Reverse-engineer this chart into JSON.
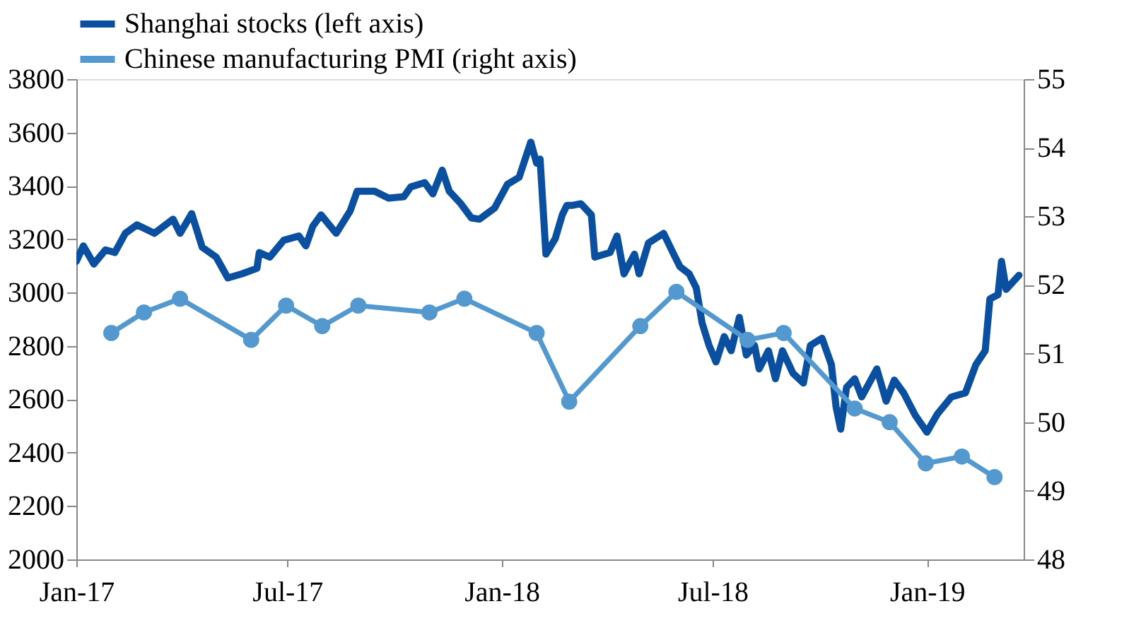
{
  "chart_data": {
    "type": "line",
    "xlim": [
      "2017-01-01",
      "2019-03-25"
    ],
    "xticks": [
      {
        "value": "2017-01-01",
        "label": "Jan-17"
      },
      {
        "value": "2017-07-01",
        "label": "Jul-17"
      },
      {
        "value": "2018-01-01",
        "label": "Jan-18"
      },
      {
        "value": "2018-07-01",
        "label": "Jul-18"
      },
      {
        "value": "2019-01-01",
        "label": "Jan-19"
      }
    ],
    "ylim": [
      2000,
      3800
    ],
    "yticks": [
      2000,
      2200,
      2400,
      2600,
      2800,
      3000,
      3200,
      3400,
      3600,
      3800
    ],
    "y2lim": [
      48,
      55
    ],
    "y2ticks": [
      48,
      49,
      50,
      51,
      52,
      53,
      54,
      55
    ],
    "grid": false,
    "legend": "top",
    "series": [
      {
        "name": "Shanghai stocks (left axis)",
        "color": "#0b4fa0",
        "marker": "none",
        "x": [
          "2017-01-01",
          "2017-01-07",
          "2017-01-16",
          "2017-01-26",
          "2017-02-03",
          "2017-02-12",
          "2017-02-22",
          "2017-03-09",
          "2017-03-25",
          "2017-03-31",
          "2017-04-10",
          "2017-04-19",
          "2017-05-01",
          "2017-05-11",
          "2017-05-23",
          "2017-06-05",
          "2017-06-07",
          "2017-06-16",
          "2017-06-28",
          "2017-07-11",
          "2017-07-17",
          "2017-07-23",
          "2017-07-30",
          "2017-08-12",
          "2017-08-24",
          "2017-08-30",
          "2017-09-14",
          "2017-09-26",
          "2017-10-09",
          "2017-10-15",
          "2017-10-27",
          "2017-11-03",
          "2017-11-11",
          "2017-11-17",
          "2017-11-27",
          "2017-12-06",
          "2017-12-13",
          "2017-12-26",
          "2018-01-06",
          "2018-01-16",
          "2018-01-26",
          "2018-01-31",
          "2018-02-03",
          "2018-02-08",
          "2018-02-16",
          "2018-02-22",
          "2018-02-26",
          "2018-03-03",
          "2018-03-10",
          "2018-03-19",
          "2018-03-22",
          "2018-04-04",
          "2018-04-10",
          "2018-04-16",
          "2018-04-25",
          "2018-04-29",
          "2018-05-07",
          "2018-05-20",
          "2018-05-28",
          "2018-06-03",
          "2018-06-11",
          "2018-06-17",
          "2018-06-22",
          "2018-06-28",
          "2018-07-04",
          "2018-07-11",
          "2018-07-17",
          "2018-07-24",
          "2018-07-30",
          "2018-08-06",
          "2018-08-10",
          "2018-08-18",
          "2018-08-24",
          "2018-08-30",
          "2018-09-08",
          "2018-09-17",
          "2018-09-23",
          "2018-10-03",
          "2018-10-11",
          "2018-10-15",
          "2018-10-19",
          "2018-10-24",
          "2018-10-31",
          "2018-11-06",
          "2018-11-19",
          "2018-11-27",
          "2018-12-04",
          "2018-12-12",
          "2018-12-22",
          "2019-01-01",
          "2019-01-10",
          "2019-01-22",
          "2019-02-03",
          "2019-02-12",
          "2019-02-20",
          "2019-02-24",
          "2019-03-03",
          "2019-03-06",
          "2019-03-10",
          "2019-03-21"
        ],
        "values": [
          3117,
          3175,
          3107,
          3160,
          3150,
          3222,
          3254,
          3222,
          3275,
          3222,
          3296,
          3170,
          3133,
          3055,
          3070,
          3091,
          3150,
          3133,
          3196,
          3212,
          3175,
          3249,
          3291,
          3222,
          3306,
          3380,
          3380,
          3354,
          3359,
          3396,
          3412,
          3370,
          3459,
          3380,
          3333,
          3280,
          3275,
          3317,
          3406,
          3432,
          3564,
          3485,
          3500,
          3144,
          3202,
          3291,
          3327,
          3327,
          3333,
          3291,
          3133,
          3150,
          3212,
          3070,
          3144,
          3070,
          3186,
          3222,
          3150,
          3097,
          3070,
          3018,
          2887,
          2802,
          2740,
          2835,
          2782,
          2907,
          2766,
          2802,
          2714,
          2782,
          2677,
          2782,
          2698,
          2661,
          2802,
          2829,
          2730,
          2572,
          2488,
          2645,
          2677,
          2609,
          2714,
          2593,
          2672,
          2624,
          2540,
          2477,
          2545,
          2609,
          2624,
          2730,
          2782,
          2976,
          2992,
          3117,
          3012,
          3065
        ]
      },
      {
        "name": "Chinese manufacturing PMI (right axis)",
        "color": "#5399cf",
        "axis": "y2",
        "marker": "circle",
        "x": [
          "2017-01-31",
          "2017-02-28",
          "2017-03-31",
          "2017-05-31",
          "2017-06-30",
          "2017-07-31",
          "2017-08-31",
          "2017-10-31",
          "2017-11-30",
          "2018-01-31",
          "2018-02-28",
          "2018-04-30",
          "2018-05-31",
          "2018-07-31",
          "2018-08-31",
          "2018-10-31",
          "2018-11-30",
          "2018-12-31",
          "2019-01-31",
          "2019-02-28"
        ],
        "values": [
          51.3,
          51.6,
          51.8,
          51.2,
          51.7,
          51.4,
          51.7,
          51.6,
          51.8,
          51.3,
          50.3,
          51.4,
          51.9,
          51.2,
          51.3,
          50.2,
          50.0,
          49.4,
          49.5,
          49.2
        ]
      }
    ]
  }
}
